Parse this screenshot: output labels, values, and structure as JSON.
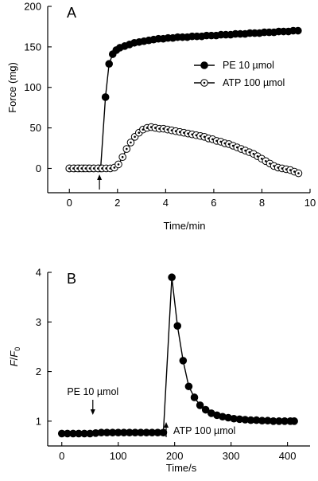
{
  "chart_data": [
    {
      "type": "scatter",
      "panel_label": "A",
      "xlabel": "Time/min",
      "ylabel": "Force (mg)",
      "xlim": [
        -0.9,
        10
      ],
      "ylim": [
        -30,
        200
      ],
      "xticks": [
        0,
        2,
        4,
        6,
        8,
        10
      ],
      "yticks": [
        0,
        50,
        100,
        150,
        200
      ],
      "legend_position": "right-middle",
      "series": [
        {
          "name": "PE 10 µmol",
          "marker": "filled-circle",
          "points": [
            [
              0.0,
              0
            ],
            [
              0.2,
              0
            ],
            [
              0.4,
              0
            ],
            [
              0.6,
              0
            ],
            [
              0.8,
              0
            ],
            [
              1.0,
              0
            ],
            [
              1.2,
              0
            ],
            [
              1.3,
              0
            ],
            [
              1.5,
              88
            ],
            [
              1.65,
              129
            ],
            [
              1.8,
              141
            ],
            [
              1.95,
              146
            ],
            [
              2.1,
              149
            ],
            [
              2.3,
              151
            ],
            [
              2.5,
              153
            ],
            [
              2.7,
              155
            ],
            [
              2.9,
              156
            ],
            [
              3.1,
              157
            ],
            [
              3.3,
              158
            ],
            [
              3.5,
              159
            ],
            [
              3.7,
              160
            ],
            [
              3.9,
              160
            ],
            [
              4.1,
              161
            ],
            [
              4.3,
              161
            ],
            [
              4.5,
              162
            ],
            [
              4.7,
              162
            ],
            [
              4.9,
              162
            ],
            [
              5.1,
              163
            ],
            [
              5.3,
              163
            ],
            [
              5.5,
              163
            ],
            [
              5.7,
              164
            ],
            [
              5.9,
              164
            ],
            [
              6.1,
              164
            ],
            [
              6.3,
              165
            ],
            [
              6.5,
              165
            ],
            [
              6.7,
              165
            ],
            [
              6.9,
              166
            ],
            [
              7.1,
              166
            ],
            [
              7.3,
              166
            ],
            [
              7.5,
              167
            ],
            [
              7.7,
              167
            ],
            [
              7.9,
              167
            ],
            [
              8.1,
              168
            ],
            [
              8.3,
              168
            ],
            [
              8.5,
              168
            ],
            [
              8.7,
              169
            ],
            [
              8.9,
              169
            ],
            [
              9.1,
              169
            ],
            [
              9.3,
              170
            ],
            [
              9.5,
              170
            ]
          ]
        },
        {
          "name": "ATP 100 µmol",
          "marker": "open-circle",
          "points": [
            [
              0.0,
              0
            ],
            [
              0.17,
              0
            ],
            [
              0.34,
              0
            ],
            [
              0.51,
              0
            ],
            [
              0.68,
              0
            ],
            [
              0.85,
              0
            ],
            [
              1.02,
              0
            ],
            [
              1.19,
              0
            ],
            [
              1.36,
              0
            ],
            [
              1.53,
              0
            ],
            [
              1.7,
              0
            ],
            [
              1.87,
              1
            ],
            [
              2.04,
              5
            ],
            [
              2.21,
              14
            ],
            [
              2.38,
              24
            ],
            [
              2.55,
              32
            ],
            [
              2.72,
              39
            ],
            [
              2.89,
              44
            ],
            [
              3.06,
              48
            ],
            [
              3.23,
              50
            ],
            [
              3.4,
              51
            ],
            [
              3.57,
              50
            ],
            [
              3.74,
              49
            ],
            [
              3.91,
              49
            ],
            [
              4.08,
              48
            ],
            [
              4.25,
              47
            ],
            [
              4.42,
              46
            ],
            [
              4.59,
              45
            ],
            [
              4.76,
              44
            ],
            [
              4.93,
              43
            ],
            [
              5.1,
              42
            ],
            [
              5.27,
              41
            ],
            [
              5.44,
              40
            ],
            [
              5.61,
              39
            ],
            [
              5.78,
              37
            ],
            [
              5.95,
              36
            ],
            [
              6.12,
              34
            ],
            [
              6.29,
              33
            ],
            [
              6.46,
              31
            ],
            [
              6.63,
              30
            ],
            [
              6.8,
              28
            ],
            [
              6.97,
              26
            ],
            [
              7.14,
              24
            ],
            [
              7.31,
              22
            ],
            [
              7.48,
              20
            ],
            [
              7.65,
              18
            ],
            [
              7.82,
              15
            ],
            [
              7.99,
              12
            ],
            [
              8.16,
              9
            ],
            [
              8.33,
              6
            ],
            [
              8.5,
              3
            ],
            [
              8.67,
              1
            ],
            [
              8.84,
              0
            ],
            [
              9.01,
              -1
            ],
            [
              9.18,
              -2
            ],
            [
              9.35,
              -4
            ],
            [
              9.52,
              -6
            ]
          ]
        }
      ],
      "annotations": [
        {
          "type": "arrow",
          "x": 1.25,
          "label": ""
        }
      ]
    },
    {
      "type": "line",
      "panel_label": "B",
      "xlabel": "Time/s",
      "ylabel_main": "F",
      "ylabel_slash": "/",
      "ylabel_sub": "0",
      "xlim": [
        -25,
        440
      ],
      "ylim": [
        0.5,
        4.0
      ],
      "xticks": [
        0,
        100,
        200,
        300,
        400
      ],
      "yticks": [
        1,
        2,
        3,
        4
      ],
      "series": [
        {
          "name": "",
          "marker": "filled-circle",
          "points": [
            [
              0,
              0.75
            ],
            [
              10,
              0.75
            ],
            [
              20,
              0.75
            ],
            [
              30,
              0.75
            ],
            [
              40,
              0.75
            ],
            [
              50,
              0.75
            ],
            [
              60,
              0.76
            ],
            [
              70,
              0.77
            ],
            [
              80,
              0.77
            ],
            [
              90,
              0.77
            ],
            [
              100,
              0.77
            ],
            [
              110,
              0.77
            ],
            [
              120,
              0.77
            ],
            [
              130,
              0.77
            ],
            [
              140,
              0.77
            ],
            [
              150,
              0.77
            ],
            [
              160,
              0.77
            ],
            [
              170,
              0.77
            ],
            [
              180,
              0.77
            ],
            [
              195,
              3.9
            ],
            [
              205,
              2.92
            ],
            [
              215,
              2.22
            ],
            [
              225,
              1.7
            ],
            [
              235,
              1.48
            ],
            [
              245,
              1.32
            ],
            [
              255,
              1.23
            ],
            [
              265,
              1.16
            ],
            [
              275,
              1.12
            ],
            [
              285,
              1.09
            ],
            [
              295,
              1.07
            ],
            [
              305,
              1.05
            ],
            [
              315,
              1.04
            ],
            [
              325,
              1.03
            ],
            [
              335,
              1.02
            ],
            [
              345,
              1.02
            ],
            [
              355,
              1.01
            ],
            [
              365,
              1.01
            ],
            [
              375,
              1.0
            ],
            [
              385,
              1.0
            ],
            [
              395,
              1.0
            ],
            [
              405,
              1.0
            ],
            [
              412,
              1.0
            ]
          ]
        }
      ],
      "annotations": [
        {
          "type": "arrow-down",
          "x": 55,
          "label": "PE 10 µmol"
        },
        {
          "type": "arrow-up",
          "x": 185,
          "label": "ATP 100 µmol"
        }
      ]
    }
  ]
}
